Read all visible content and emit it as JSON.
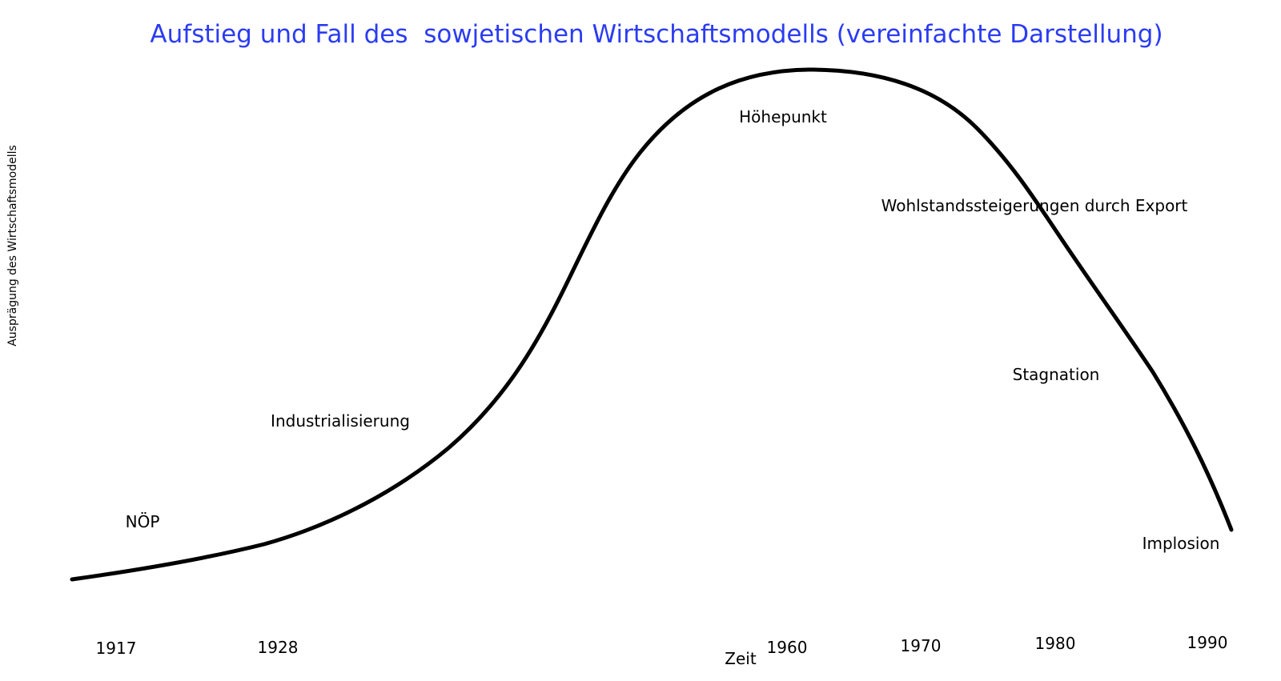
{
  "title": "Aufstieg und Fall des  sowjetischen Wirtschaftsmodells (vereinfachte Darstellung)",
  "y_axis_label": "Ausprägung des Wirtschaftsmodells",
  "x_axis_label": "Zeit",
  "years": [
    "1917",
    "1928",
    "1960",
    "1970",
    "1980",
    "1990"
  ],
  "annotations": [
    "NÖP",
    "Industrialisierung",
    "Höhepunkt",
    "Wohlstandssteigerungen durch Export",
    "Stagnation",
    "Implosion"
  ]
}
